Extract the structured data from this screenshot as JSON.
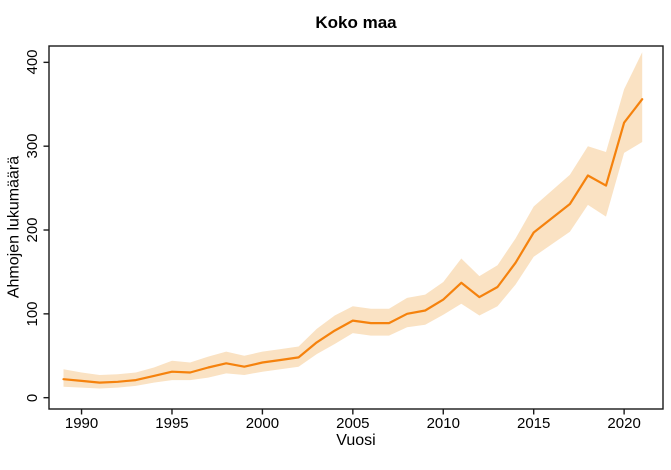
{
  "figure": {
    "title": "Koko maa",
    "x_axis_title": "Vuosi",
    "y_axis_title": "Ahmojen lukumäärä"
  },
  "colors": {
    "line": "#F5820D",
    "band": "#FAE2C3",
    "axis": "#1a1a1a",
    "text": "#000000",
    "background": "#ffffff"
  },
  "chart_data": {
    "type": "line",
    "title": "Koko maa",
    "xlabel": "Vuosi",
    "ylabel": "Ahmojen lukumäärä",
    "x": [
      1989,
      1990,
      1991,
      1992,
      1993,
      1994,
      1995,
      1996,
      1997,
      1998,
      1999,
      2000,
      2001,
      2002,
      2003,
      2004,
      2005,
      2006,
      2007,
      2008,
      2009,
      2010,
      2011,
      2012,
      2013,
      2014,
      2015,
      2016,
      2017,
      2018,
      2019,
      2020,
      2021
    ],
    "series": [
      {
        "name": "estimate",
        "values": [
          22,
          20,
          18,
          19,
          21,
          26,
          31,
          30,
          36,
          41,
          37,
          42,
          45,
          48,
          66,
          80,
          92,
          89,
          89,
          100,
          104,
          117,
          137,
          120,
          132,
          161,
          197,
          214,
          231,
          265,
          253,
          328,
          356
        ]
      },
      {
        "name": "ci_lower",
        "values": [
          13,
          12,
          11,
          12,
          14,
          18,
          21,
          21,
          24,
          29,
          27,
          31,
          34,
          37,
          52,
          64,
          77,
          74,
          74,
          84,
          87,
          99,
          112,
          98,
          109,
          135,
          168,
          183,
          198,
          230,
          216,
          292,
          305
        ]
      },
      {
        "name": "ci_upper",
        "values": [
          34,
          30,
          27,
          28,
          30,
          36,
          44,
          42,
          49,
          55,
          50,
          55,
          58,
          61,
          82,
          98,
          109,
          106,
          106,
          119,
          123,
          138,
          166,
          145,
          158,
          190,
          228,
          247,
          266,
          300,
          293,
          368,
          412
        ]
      }
    ],
    "xticks": [
      "1990",
      "1995",
      "2000",
      "2005",
      "2010",
      "2015",
      "2020"
    ],
    "xtick_values": [
      1990,
      1995,
      2000,
      2005,
      2010,
      2015,
      2020
    ],
    "yticks": [
      "0",
      "100",
      "200",
      "300",
      "400"
    ],
    "ytick_values": [
      0,
      100,
      200,
      300,
      400
    ],
    "xlim": [
      1988.2,
      2022.15
    ],
    "ylim": [
      -13.5,
      419.5
    ],
    "grid": false,
    "legend": null
  }
}
